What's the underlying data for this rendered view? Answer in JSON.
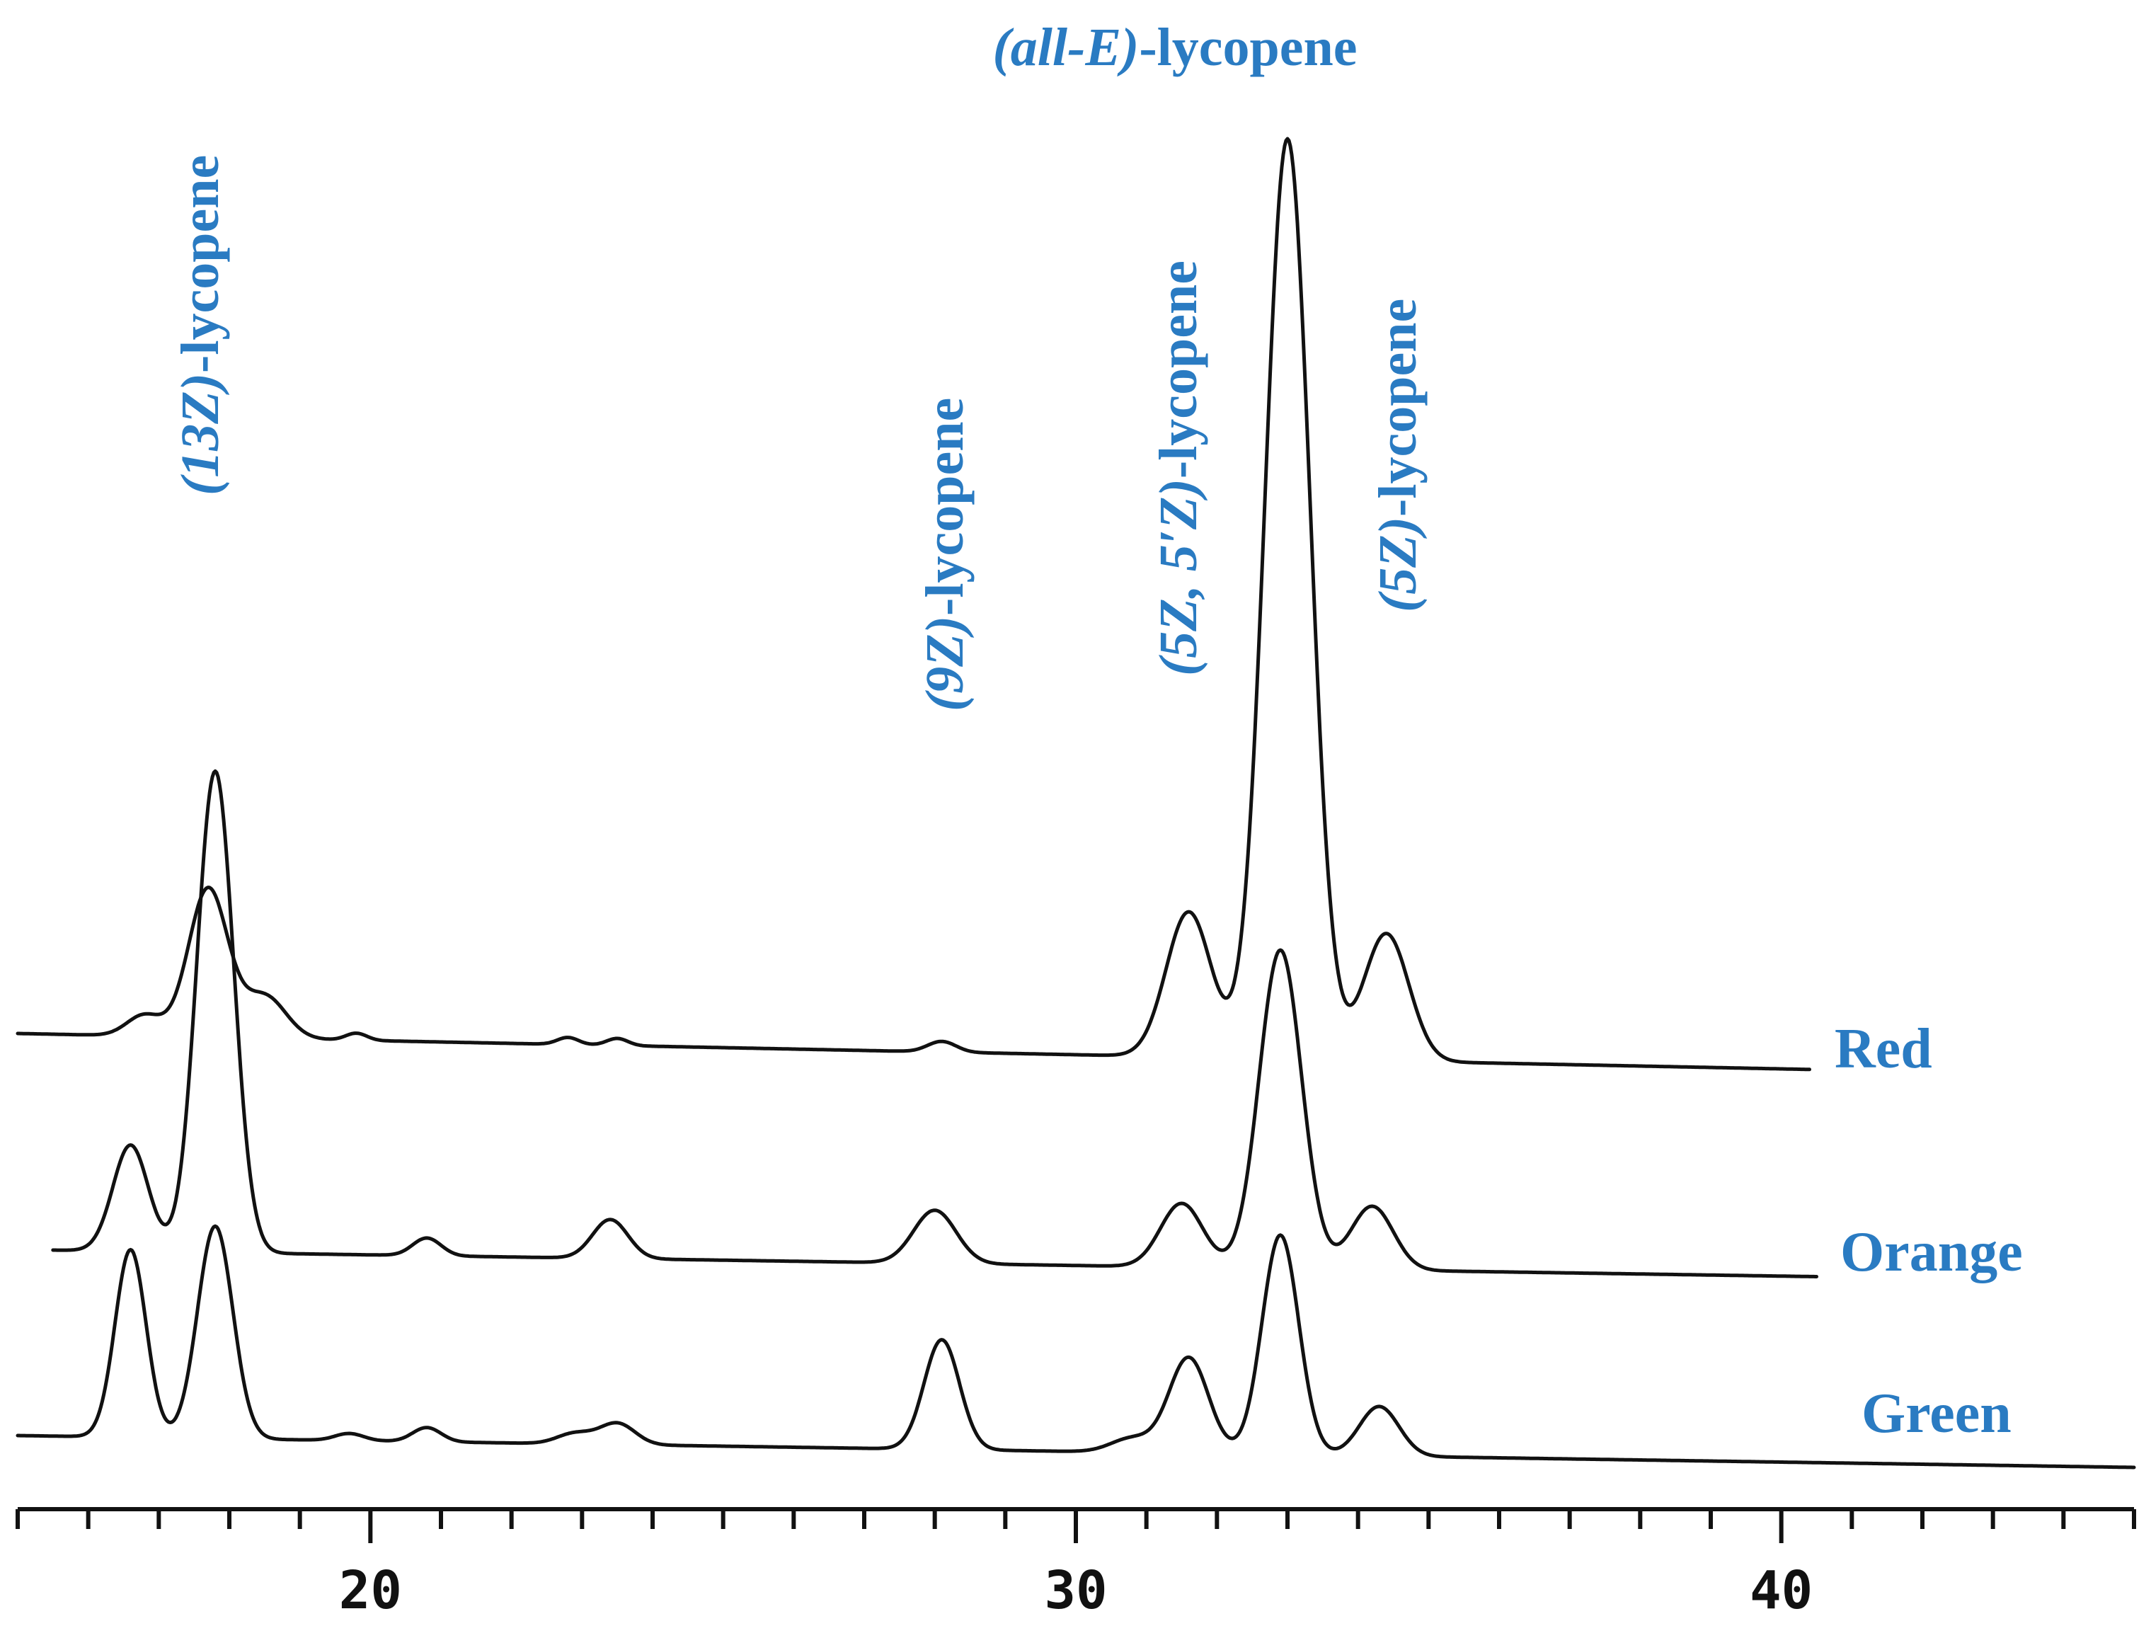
{
  "chart_data": {
    "type": "line",
    "title": "",
    "xlabel": "",
    "ylabel": "",
    "x_axis": {
      "min": 15,
      "max": 45,
      "major_ticks": [
        20,
        30,
        40
      ],
      "tick_labels": [
        "20",
        "30",
        "40"
      ]
    },
    "label_color": "#2a7bc2",
    "line_color": "#111111",
    "annotations": [
      {
        "id": "all-e",
        "prefix": "(all-E)",
        "suffix": "-lycopene",
        "x": 33.0,
        "orientation": "horizontal"
      },
      {
        "id": "13z",
        "prefix": "(13Z)",
        "suffix": "-lycopene",
        "x": 17.7,
        "orientation": "vertical"
      },
      {
        "id": "9z",
        "prefix": "(9Z)",
        "suffix": "-lycopene",
        "x": 28.2,
        "orientation": "vertical"
      },
      {
        "id": "5z5z",
        "prefix": "(5Z, 5′Z)",
        "suffix": "-lycopene",
        "x": 31.6,
        "orientation": "vertical"
      },
      {
        "id": "5z",
        "prefix": "(5Z)",
        "suffix": "-lycopene",
        "x": 34.6,
        "orientation": "vertical"
      }
    ],
    "series": [
      {
        "name": "Red",
        "x_start": 15.0,
        "x_end": 40.4,
        "baseline": 0.0,
        "slope": -0.004,
        "peaks": [
          {
            "x": 16.8,
            "height": 0.06,
            "width": 0.25
          },
          {
            "x": 17.7,
            "height": 0.42,
            "width": 0.28
          },
          {
            "x": 18.5,
            "height": 0.12,
            "width": 0.3
          },
          {
            "x": 19.8,
            "height": 0.02,
            "width": 0.15
          },
          {
            "x": 22.8,
            "height": 0.02,
            "width": 0.15
          },
          {
            "x": 23.5,
            "height": 0.02,
            "width": 0.15
          },
          {
            "x": 28.1,
            "height": 0.03,
            "width": 0.2
          },
          {
            "x": 31.6,
            "height": 0.41,
            "width": 0.32
          },
          {
            "x": 33.0,
            "height": 2.6,
            "width": 0.32
          },
          {
            "x": 34.4,
            "height": 0.36,
            "width": 0.32
          }
        ]
      },
      {
        "name": "Orange",
        "x_start": 15.5,
        "x_end": 40.5,
        "baseline": 0.0,
        "slope": -0.003,
        "peaks": [
          {
            "x": 16.6,
            "height": 0.3,
            "width": 0.25
          },
          {
            "x": 17.8,
            "height": 1.36,
            "width": 0.26
          },
          {
            "x": 20.8,
            "height": 0.05,
            "width": 0.2
          },
          {
            "x": 23.4,
            "height": 0.11,
            "width": 0.25
          },
          {
            "x": 28.0,
            "height": 0.15,
            "width": 0.3
          },
          {
            "x": 31.5,
            "height": 0.18,
            "width": 0.3
          },
          {
            "x": 32.9,
            "height": 0.9,
            "width": 0.3
          },
          {
            "x": 34.2,
            "height": 0.18,
            "width": 0.3
          }
        ]
      },
      {
        "name": "Green",
        "x_start": 15.0,
        "x_end": 45.0,
        "baseline": 0.0,
        "slope": -0.003,
        "peaks": [
          {
            "x": 16.6,
            "height": 0.53,
            "width": 0.22
          },
          {
            "x": 17.8,
            "height": 0.6,
            "width": 0.25
          },
          {
            "x": 19.7,
            "height": 0.02,
            "width": 0.2
          },
          {
            "x": 20.8,
            "height": 0.04,
            "width": 0.2
          },
          {
            "x": 22.9,
            "height": 0.03,
            "width": 0.25
          },
          {
            "x": 23.5,
            "height": 0.06,
            "width": 0.25
          },
          {
            "x": 28.1,
            "height": 0.31,
            "width": 0.25
          },
          {
            "x": 30.8,
            "height": 0.04,
            "width": 0.3
          },
          {
            "x": 31.6,
            "height": 0.27,
            "width": 0.28
          },
          {
            "x": 32.9,
            "height": 0.62,
            "width": 0.26
          },
          {
            "x": 34.3,
            "height": 0.14,
            "width": 0.28
          }
        ]
      }
    ]
  }
}
